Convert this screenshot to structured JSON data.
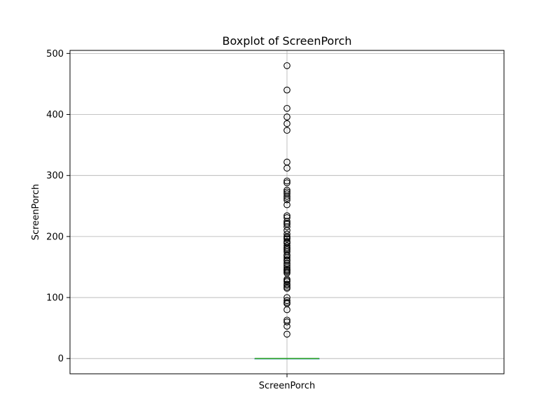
{
  "chart_data": {
    "type": "box",
    "title": "Boxplot of ScreenPorch",
    "xlabel": "",
    "ylabel": "ScreenPorch",
    "categories": [
      "ScreenPorch"
    ],
    "ylim": [
      -25,
      505
    ],
    "yticks": [
      0,
      100,
      200,
      300,
      400,
      500
    ],
    "grid": true,
    "box": {
      "min": 0,
      "q1": 0,
      "median": 0,
      "q3": 0,
      "max": 0
    },
    "outliers": [
      480,
      440,
      410,
      396,
      385,
      374,
      322,
      312,
      291,
      288,
      276,
      273,
      270,
      266,
      263,
      260,
      252,
      234,
      231,
      225,
      222,
      220,
      216,
      210,
      204,
      200,
      198,
      196,
      192,
      190,
      189,
      185,
      182,
      180,
      178,
      175,
      170,
      168,
      165,
      162,
      160,
      156,
      153,
      150,
      147,
      145,
      144,
      142,
      140,
      130,
      128,
      126,
      122,
      120,
      117,
      115,
      100,
      95,
      92,
      90,
      80,
      63,
      60,
      53,
      40
    ],
    "colors": {
      "median": "#2ca02c",
      "box": "#1f77b4",
      "grid": "#b0b0b0",
      "marker": "#000000"
    }
  }
}
